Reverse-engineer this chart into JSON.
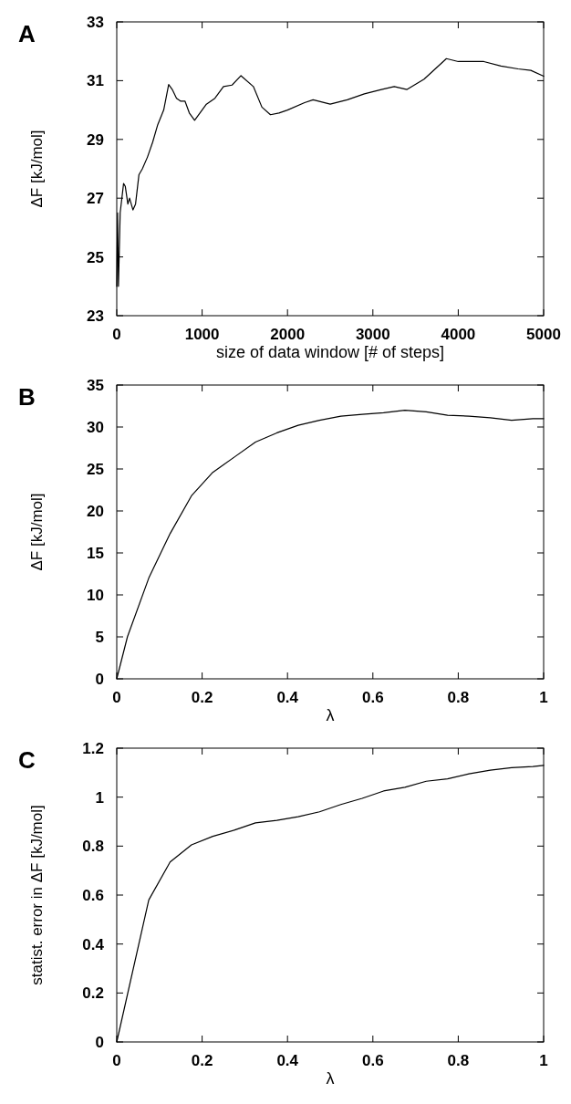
{
  "chart_data": [
    {
      "type": "line",
      "title": "A",
      "xlabel": "size of data window [# of steps]",
      "ylabel": "ΔF  [kJ/mol]",
      "xlim": [
        0,
        5000
      ],
      "ylim": [
        23,
        33
      ],
      "xticks": [
        0,
        1000,
        2000,
        3000,
        4000,
        5000
      ],
      "yticks": [
        23,
        25,
        27,
        29,
        31,
        33
      ],
      "series": [
        {
          "color": "#000000",
          "x": [
            0,
            10,
            20,
            40,
            80,
            100,
            130,
            150,
            190,
            220,
            260,
            300,
            360,
            420,
            480,
            550,
            608,
            650,
            700,
            750,
            800,
            850,
            912,
            1050,
            1150,
            1250,
            1350,
            1455,
            1600,
            1700,
            1800,
            1900,
            2000,
            2200,
            2300,
            2500,
            2700,
            2900,
            3100,
            3250,
            3400,
            3600,
            3861,
            4000,
            4100,
            4300,
            4500,
            4700,
            4850,
            5000
          ],
          "values": [
            24,
            26.5,
            24,
            26.5,
            27.5,
            27.4,
            26.8,
            27,
            26.6,
            26.8,
            27.8,
            28,
            28.4,
            28.9,
            29.5,
            30,
            30.87,
            30.7,
            30.4,
            30.3,
            30.3,
            29.9,
            29.65,
            30.2,
            30.4,
            30.8,
            30.85,
            31.17,
            30.8,
            30.1,
            29.84,
            29.9,
            30,
            30.25,
            30.35,
            30.2,
            30.35,
            30.55,
            30.7,
            30.8,
            30.7,
            31.05,
            31.75,
            31.65,
            31.65,
            31.65,
            31.5,
            31.4,
            31.35,
            31.15
          ]
        }
      ]
    },
    {
      "type": "line",
      "title": "B",
      "xlabel": "λ",
      "ylabel": "ΔF [kJ/mol]",
      "xlim": [
        0,
        1
      ],
      "ylim": [
        0,
        35
      ],
      "xticks": [
        0,
        0.2,
        0.4,
        0.6,
        0.8,
        1
      ],
      "yticks": [
        0,
        5,
        10,
        15,
        20,
        25,
        30,
        35
      ],
      "series": [
        {
          "color": "#000000",
          "x": [
            0,
            0.025,
            0.075,
            0.125,
            0.175,
            0.225,
            0.275,
            0.325,
            0.375,
            0.425,
            0.475,
            0.525,
            0.575,
            0.625,
            0.675,
            0.725,
            0.775,
            0.825,
            0.875,
            0.925,
            0.975,
            1
          ],
          "values": [
            0,
            5,
            12,
            17.3,
            21.8,
            24.6,
            26.4,
            28.2,
            29.3,
            30.2,
            30.8,
            31.3,
            31.5,
            31.7,
            32,
            31.8,
            31.4,
            31.3,
            31.1,
            30.8,
            31,
            31
          ]
        }
      ]
    },
    {
      "type": "line",
      "title": "C",
      "xlabel": "λ",
      "ylabel": "statist. error in ΔF [kJ/mol]",
      "xlim": [
        0,
        1
      ],
      "ylim": [
        0,
        1.2
      ],
      "xticks": [
        0,
        0.2,
        0.4,
        0.6,
        0.8,
        1
      ],
      "yticks": [
        0,
        0.2,
        0.4,
        0.6,
        0.8,
        1,
        1.2
      ],
      "series": [
        {
          "color": "#000000",
          "x": [
            0,
            0.075,
            0.125,
            0.175,
            0.225,
            0.275,
            0.325,
            0.375,
            0.425,
            0.475,
            0.525,
            0.575,
            0.625,
            0.675,
            0.725,
            0.775,
            0.825,
            0.875,
            0.925,
            0.975,
            1
          ],
          "values": [
            0,
            0.58,
            0.735,
            0.805,
            0.84,
            0.865,
            0.895,
            0.905,
            0.92,
            0.94,
            0.97,
            0.995,
            1.025,
            1.04,
            1.065,
            1.075,
            1.095,
            1.11,
            1.12,
            1.125,
            1.13
          ]
        }
      ]
    }
  ]
}
